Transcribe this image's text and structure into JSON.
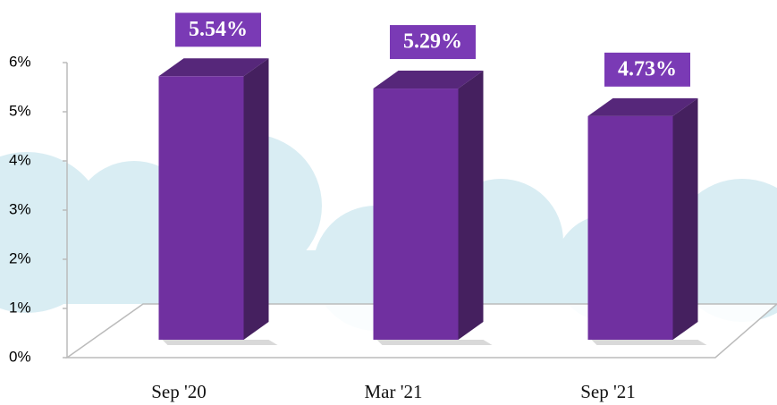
{
  "chart_data": {
    "type": "bar3d",
    "categories": [
      "Sep '20",
      "Mar '21",
      "Sep '21"
    ],
    "values": [
      5.54,
      5.29,
      4.73
    ],
    "value_labels": [
      "5.54%",
      "5.29%",
      "4.73%"
    ],
    "color": "#7030a0",
    "ylim": [
      0,
      6
    ],
    "yticks": [
      {
        "value": 0,
        "label": "0%"
      },
      {
        "value": 1,
        "label": "1%"
      },
      {
        "value": 2,
        "label": "2%"
      },
      {
        "value": 3,
        "label": "3%"
      },
      {
        "value": 4,
        "label": "4%"
      },
      {
        "value": 5,
        "label": "5%"
      },
      {
        "value": 6,
        "label": "6%"
      }
    ]
  }
}
